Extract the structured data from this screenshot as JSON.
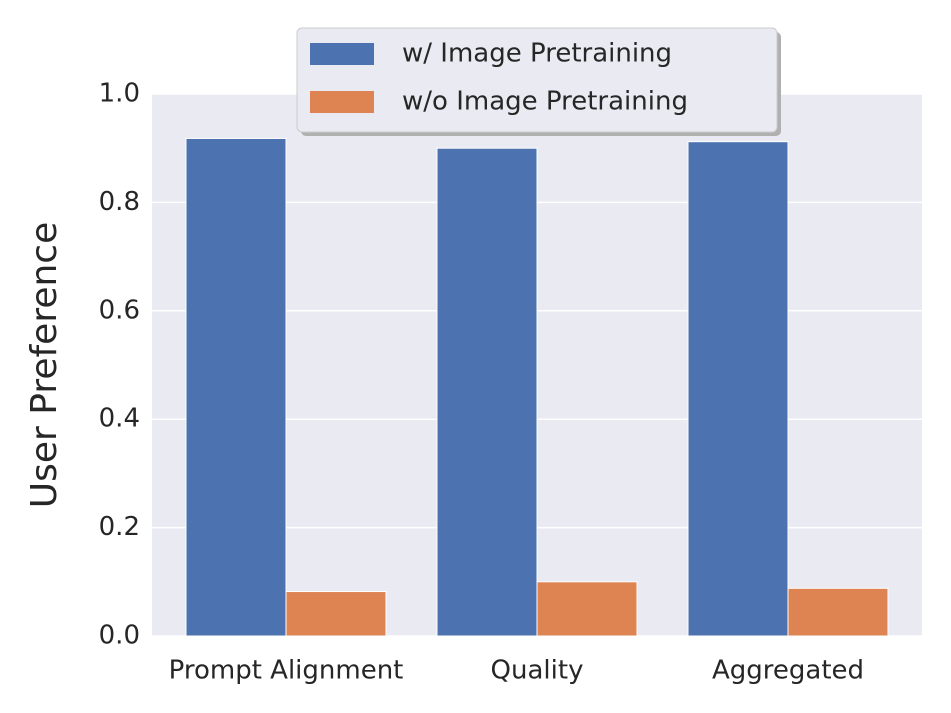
{
  "chart_data": {
    "type": "bar",
    "ylabel": "User Preference",
    "categories": [
      "Prompt Alignment",
      "Quality",
      "Aggregated"
    ],
    "series": [
      {
        "name": "w/ Image Pretraining",
        "color": "#4c72b0",
        "values": [
          0.918,
          0.9,
          0.912
        ]
      },
      {
        "name": "w/o Image Pretraining",
        "color": "#dd8452",
        "values": [
          0.082,
          0.1,
          0.088
        ]
      }
    ],
    "ylim": [
      0,
      1
    ],
    "yticks": [
      {
        "value": 0,
        "label": "0.0"
      },
      0.2,
      0.4,
      0.6,
      0.8,
      {
        "value": 1,
        "label": "1.0"
      }
    ],
    "grid": true,
    "legend": "upper center"
  }
}
